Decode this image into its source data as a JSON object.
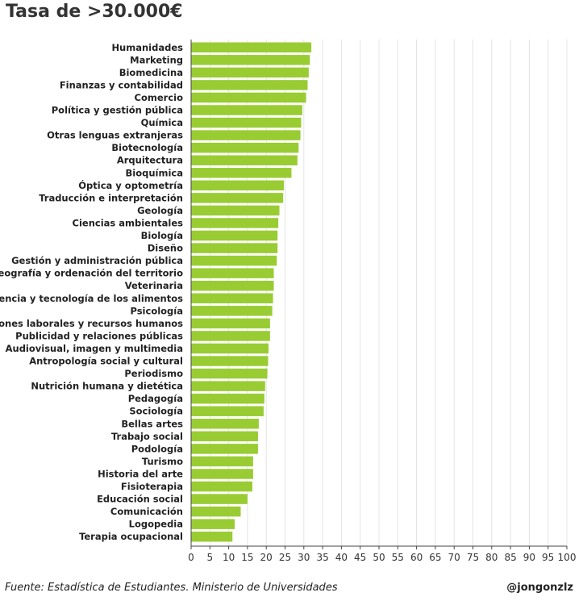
{
  "title": "Tasa de >30.000€",
  "footer": {
    "source": "Fuente: Estadística de Estudiantes. Ministerio de Universidades",
    "credit": "@jongonzlz"
  },
  "chart_data": {
    "type": "bar",
    "orientation": "horizontal",
    "title": "Tasa de >30.000€",
    "xlim": [
      0,
      100
    ],
    "xticks": [
      0,
      5,
      10,
      15,
      20,
      25,
      30,
      35,
      40,
      45,
      50,
      55,
      60,
      65,
      70,
      75,
      80,
      85,
      90,
      95,
      100
    ],
    "grid": "vertical",
    "bar_color": "#99cc33",
    "categories": [
      "Humanidades",
      "Marketing",
      "Biomedicina",
      "Finanzas y contabilidad",
      "Comercio",
      "Política y gestión pública",
      "Química",
      "Otras lenguas extranjeras",
      "Biotecnología",
      "Arquitectura",
      "Bioquímica",
      "Óptica y optometría",
      "Traducción e interpretación",
      "Geología",
      "Ciencias ambientales",
      "Biología",
      "Diseño",
      "Gestión y administración pública",
      "Geografía y ordenación del territorio",
      "Veterinaria",
      "Ciencia y tecnología de los alimentos",
      "Psicología",
      "Relaciones laborales y recursos humanos",
      "Publicidad y relaciones públicas",
      "Audiovisual, imagen y multimedia",
      "Antropología social y cultural",
      "Periodismo",
      "Nutrición humana y dietética",
      "Pedagogía",
      "Sociología",
      "Bellas artes",
      "Trabajo social",
      "Podología",
      "Turismo",
      "Historia del arte",
      "Fisioterapia",
      "Educación social",
      "Comunicación",
      "Logopedia",
      "Terapia ocupacional"
    ],
    "values": [
      32.0,
      31.6,
      31.3,
      31.0,
      30.6,
      29.6,
      29.3,
      29.1,
      28.6,
      28.3,
      26.7,
      24.7,
      24.5,
      23.5,
      23.2,
      23.0,
      23.0,
      22.8,
      22.0,
      22.0,
      21.8,
      21.6,
      21.0,
      21.0,
      20.6,
      20.5,
      20.3,
      19.7,
      19.5,
      19.3,
      18.0,
      17.8,
      17.8,
      16.5,
      16.5,
      16.3,
      15.0,
      13.2,
      11.6,
      11.0
    ]
  }
}
